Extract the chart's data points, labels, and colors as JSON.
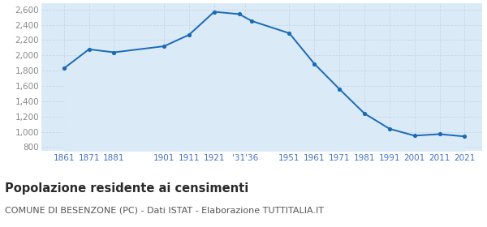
{
  "years": [
    1861,
    1871,
    1881,
    1901,
    1911,
    1921,
    1931,
    1936,
    1951,
    1961,
    1971,
    1981,
    1991,
    2001,
    2011,
    2021
  ],
  "population": [
    1830,
    2080,
    2040,
    2120,
    2270,
    2570,
    2540,
    2450,
    2290,
    1890,
    1560,
    1240,
    1040,
    950,
    970,
    940
  ],
  "line_color": "#1a6ab5",
  "fill_color": "#daeaf7",
  "marker_color": "#1a6ab5",
  "background_color": "#ffffff",
  "grid_color": "#c8d8e8",
  "ylabel_ticks": [
    800,
    1000,
    1200,
    1400,
    1600,
    1800,
    2000,
    2200,
    2400,
    2600
  ],
  "ylim": [
    750,
    2680
  ],
  "title": "Popolazione residente ai censimenti",
  "subtitle": "COMUNE DI BESENZONE (PC) - Dati ISTAT - Elaborazione TUTTITALIA.IT",
  "title_fontsize": 10.5,
  "subtitle_fontsize": 8,
  "tick_label_color": "#4472c4",
  "ytick_label_color": "#888888",
  "tick_fontsize": 7.5
}
